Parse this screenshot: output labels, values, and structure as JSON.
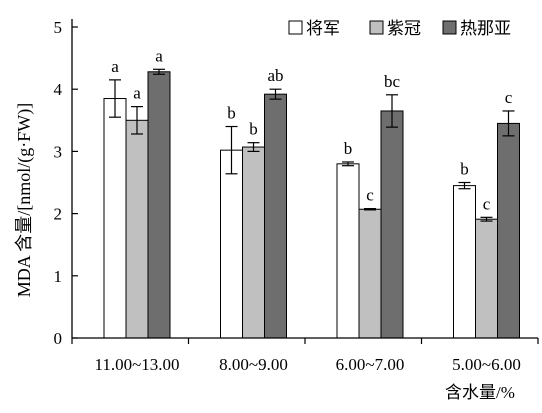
{
  "chart_data": {
    "type": "bar",
    "categories": [
      "11.00~13.00",
      "8.00~9.00",
      "6.00~7.00",
      "5.00~6.00"
    ],
    "xlabel": "含水量/%",
    "ylabel": "MDA 含量/[nmol/(g·FW)]",
    "ylim": [
      0,
      5
    ],
    "yticks": [
      "0",
      "1",
      "2",
      "3",
      "4",
      "5"
    ],
    "grid": false,
    "legend_position": "top-right",
    "series": [
      {
        "name": "将军",
        "color": "#ffffff",
        "values": [
          3.85,
          3.02,
          2.8,
          2.45
        ],
        "errors": [
          0.3,
          0.38,
          0.03,
          0.05
        ],
        "letters": [
          "a",
          "b",
          "b",
          "b"
        ]
      },
      {
        "name": "紫冠",
        "color": "#c0c0c0",
        "values": [
          3.5,
          3.07,
          2.07,
          1.91
        ],
        "errors": [
          0.22,
          0.07,
          0.01,
          0.03
        ],
        "letters": [
          "a",
          "b",
          "c",
          "c"
        ]
      },
      {
        "name": "热那亚",
        "color": "#6e6e6e",
        "values": [
          4.28,
          3.92,
          3.65,
          3.45
        ],
        "errors": [
          0.04,
          0.08,
          0.26,
          0.2
        ],
        "letters": [
          "a",
          "ab",
          "bc",
          "c"
        ]
      }
    ]
  }
}
